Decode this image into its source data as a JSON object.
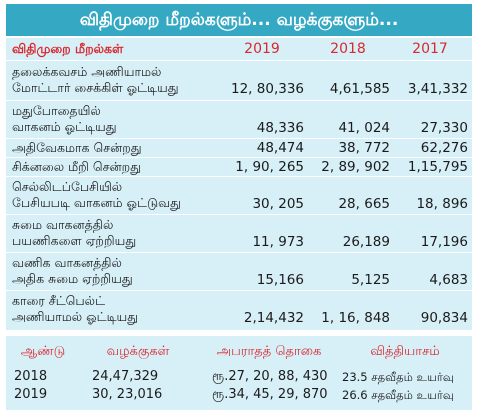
{
  "title": "விதிமுறை மீறல்களும்... வழக்குகளும்...",
  "table": {
    "header": {
      "label": "விதிமுறை மீறல்கள்",
      "years": [
        "2019",
        "2018",
        "2017"
      ]
    },
    "rows": [
      {
        "line1": "தலைக்கவசம் அணியாமல்",
        "line2": "மோட்டார் சைக்கிள் ஓட்டியது",
        "v2019": "12, 80,336",
        "v2018": "4,61,585",
        "v2017": "3,41,332"
      },
      {
        "line1": "மதுபோதையில்",
        "line2": "வாகனம் ஓட்டியது",
        "v2019": "48,336",
        "v2018": "41, 024",
        "v2017": "27,330"
      },
      {
        "line1": "அதிவேகமாக சென்றது",
        "line2": "",
        "v2019": "48,474",
        "v2018": "38, 772",
        "v2017": "62,276"
      },
      {
        "line1": "சிக்னலை மீறி சென்றது",
        "line2": "",
        "v2019": "1, 90, 265",
        "v2018": "2, 89, 902",
        "v2017": "1,15,795"
      },
      {
        "line1": "செல்லிடப்பேசியில்",
        "line2": "பேசியபடி வாகனம் ஓட்டுவது",
        "v2019": "30, 205",
        "v2018": "28, 665",
        "v2017": "18, 896"
      },
      {
        "line1": "சுமை வாகனத்தில்",
        "line2": "பயணிகளை ஏற்றியது",
        "v2019": "11, 973",
        "v2018": "26,189",
        "v2017": "17,196"
      },
      {
        "line1": "வணிக வாகனத்தில்",
        "line2": "அதிக சுமை ஏற்றியது",
        "v2019": "15,166",
        "v2018": "5,125",
        "v2017": "4,683"
      },
      {
        "line1": "காரை சீட்பெல்ட்",
        "line2": "அணியாமல் ஓட்டியது",
        "v2019": "2,14,432",
        "v2018": "1, 16, 848",
        "v2017": "90,834"
      }
    ]
  },
  "summary": {
    "headers": [
      "ஆண்டு",
      "வழக்குகள்",
      "அபராதத் தொகை",
      "வித்தியாசம்"
    ],
    "rows": [
      {
        "year": "2018",
        "cases": "24,47,329",
        "fine": "ரூ.27, 20, 88, 430",
        "diff": "23.5 சதவீதம் உயர்வு"
      },
      {
        "year": "2019",
        "cases": "30, 23,016",
        "fine": "ரூ.34, 45, 29, 870",
        "diff": "26.6 சதவீதம் உயர்வு"
      }
    ]
  },
  "colors": {
    "title_bg": "#35a9c4",
    "panel_bg": "#d7eff7",
    "accent_red": "#d9282f"
  }
}
